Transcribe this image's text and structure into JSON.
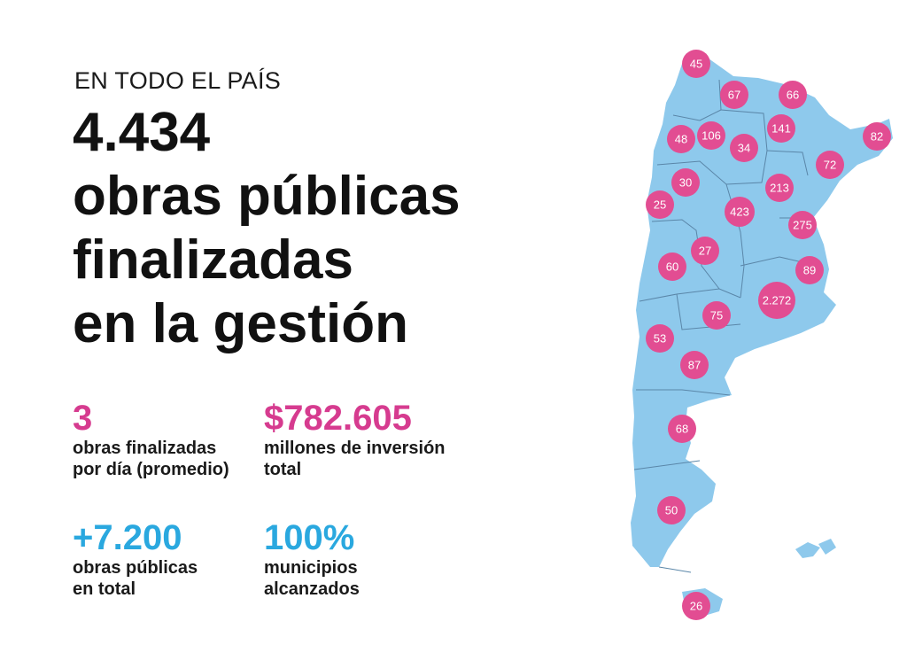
{
  "header": {
    "kicker": "EN TODO EL PAÍS",
    "headline_lines": [
      "4.434",
      "obras públicas",
      "finalizadas",
      "en la gestión"
    ]
  },
  "stats": [
    {
      "value": "3",
      "label_lines": [
        "obras finalizadas",
        "por día (promedio)"
      ],
      "color": "#d63b8f"
    },
    {
      "value": "$782.605",
      "label_lines": [
        "millones de inversión",
        "total"
      ],
      "color": "#d63b8f"
    },
    {
      "value": "+7.200",
      "label_lines": [
        "obras públicas",
        "en total"
      ],
      "color": "#2aa8df"
    },
    {
      "value": "100%",
      "label_lines": [
        "municipios",
        "alcanzados"
      ],
      "color": "#2aa8df"
    }
  ],
  "map": {
    "land_color": "#8ec9ec",
    "border_color": "#5a86a8",
    "bubble_color": "#e24d92",
    "province_values": [
      "45",
      "67",
      "66",
      "48",
      "106",
      "141",
      "34",
      "82",
      "72",
      "30",
      "213",
      "25",
      "423",
      "275",
      "27",
      "60",
      "89",
      "2.272",
      "75",
      "53",
      "87",
      "68",
      "50",
      "26"
    ]
  }
}
